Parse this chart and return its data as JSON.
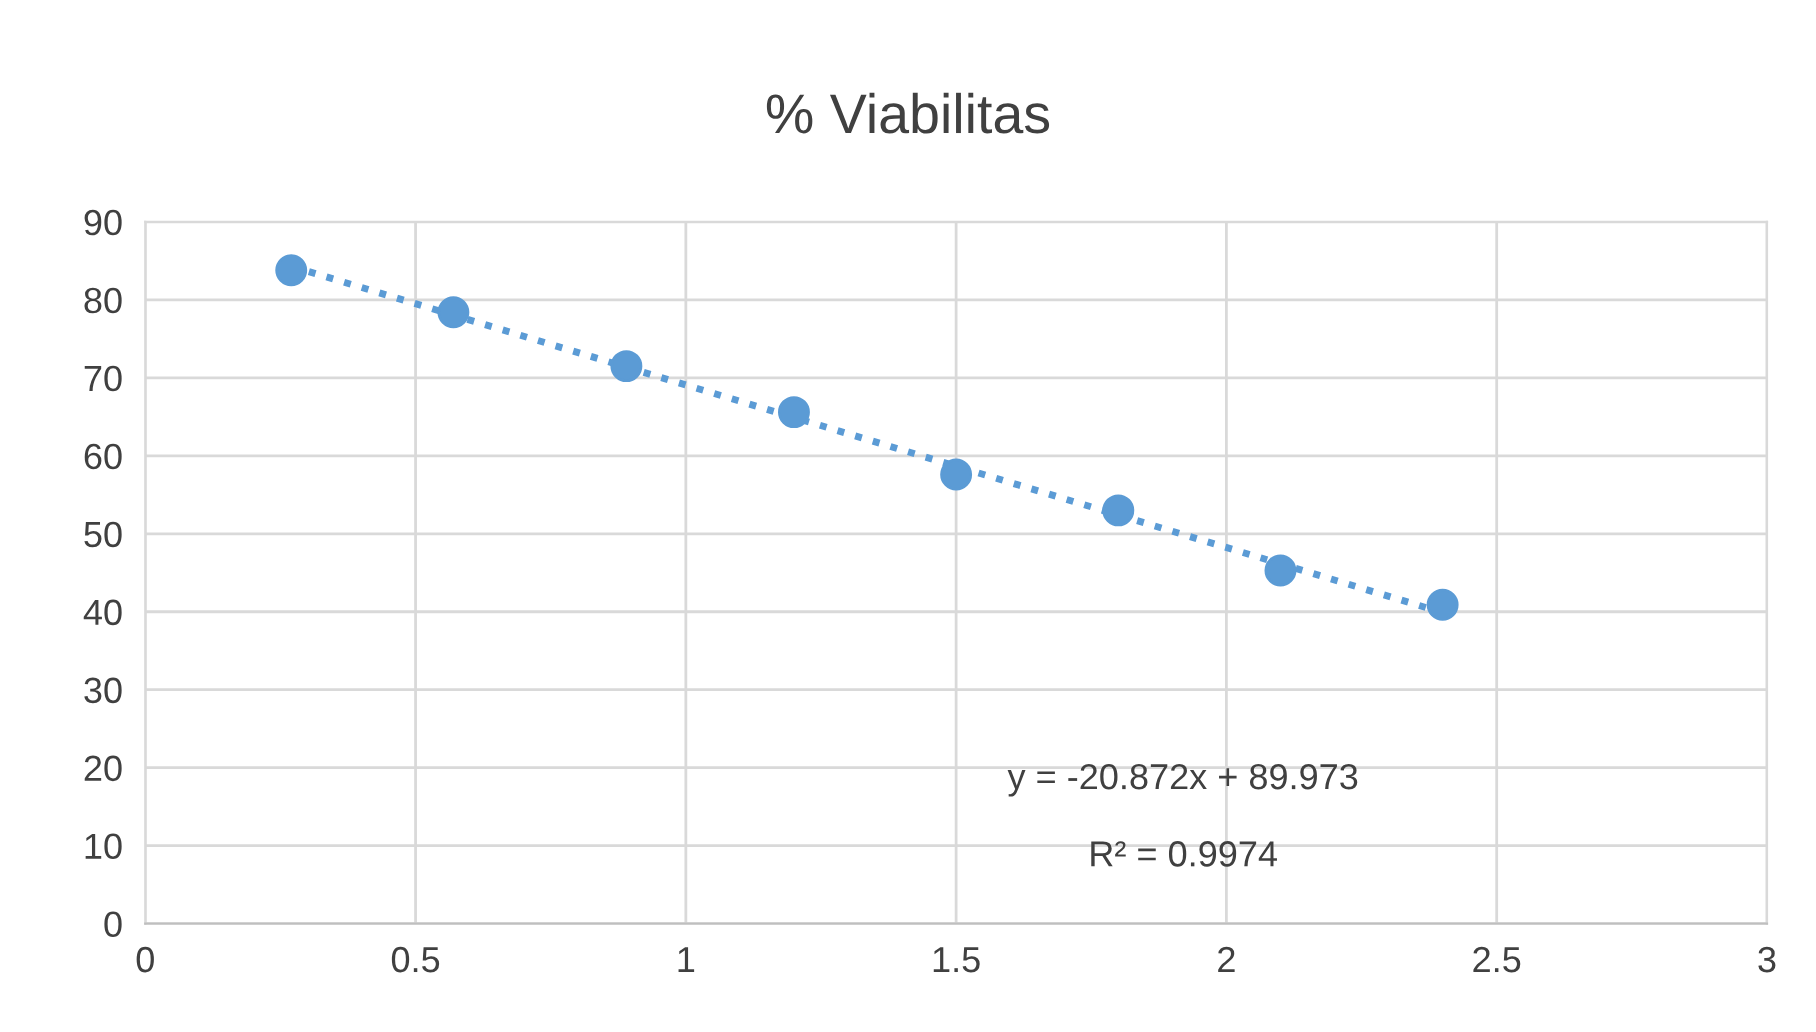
{
  "chart_data": {
    "type": "scatter",
    "title": "% Viabilitas",
    "series": [
      {
        "color": "#5b9bd5",
        "marker": "circle",
        "x": [
          0.27,
          0.57,
          0.89,
          1.2,
          1.5,
          1.8,
          2.1,
          2.4
        ],
        "values": [
          83.8,
          78.4,
          71.5,
          65.6,
          57.6,
          53.0,
          45.3,
          40.9
        ]
      },
      {
        "type": "line",
        "color": "#5b9bd5",
        "marker": "none",
        "line_style": "dotted",
        "x": [
          0.27,
          2.4
        ],
        "values": [
          84.3,
          39.9
        ]
      }
    ],
    "xlim": [
      0,
      3
    ],
    "xticks": [
      0,
      {
        "value": 0.5,
        "label": "0.5"
      },
      1,
      {
        "value": 1.5,
        "label": "1.5"
      },
      2,
      {
        "value": 2.5,
        "label": "2.5"
      },
      3
    ],
    "ylim": [
      0,
      90
    ],
    "yticks": [
      0,
      10,
      20,
      30,
      40,
      50,
      60,
      70,
      80,
      90
    ],
    "grid": true,
    "annotations": [
      "y = -20.872x + 89.973",
      "R² = 0.9974"
    ]
  }
}
